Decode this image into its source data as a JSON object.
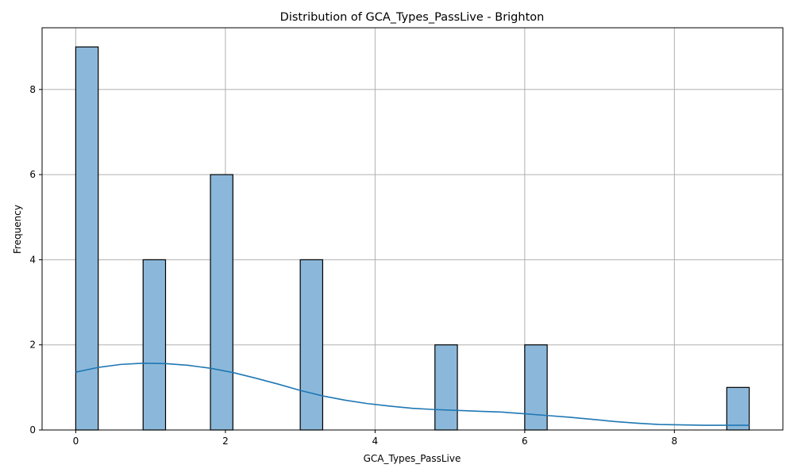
{
  "chart_data": {
    "type": "bar",
    "title": "Distribution of GCA_Types_PassLive - Brighton",
    "xlabel": "GCA_Types_PassLive",
    "ylabel": "Frequency",
    "xlim": [
      -0.45,
      9.45
    ],
    "ylim": [
      0,
      9.45
    ],
    "xticks": [
      0,
      2,
      4,
      6,
      8
    ],
    "yticks": [
      0,
      2,
      4,
      6,
      8
    ],
    "grid": true,
    "bin_width": 0.3,
    "bars": [
      {
        "x_start": 0.0,
        "value": 9
      },
      {
        "x_start": 0.9,
        "value": 4
      },
      {
        "x_start": 1.8,
        "value": 6
      },
      {
        "x_start": 3.0,
        "value": 4
      },
      {
        "x_start": 4.8,
        "value": 2
      },
      {
        "x_start": 6.0,
        "value": 2
      },
      {
        "x_start": 8.7,
        "value": 1
      }
    ],
    "kde": {
      "color": "#1f77b4",
      "x": [
        0.0,
        0.3,
        0.6,
        0.9,
        1.2,
        1.5,
        1.8,
        2.1,
        2.4,
        2.7,
        3.0,
        3.3,
        3.6,
        3.9,
        4.2,
        4.5,
        4.8,
        5.1,
        5.4,
        5.7,
        6.0,
        6.3,
        6.6,
        6.9,
        7.2,
        7.5,
        7.8,
        8.1,
        8.4,
        8.7,
        9.0
      ],
      "y": [
        1.36,
        1.47,
        1.54,
        1.57,
        1.56,
        1.52,
        1.45,
        1.35,
        1.22,
        1.08,
        0.93,
        0.8,
        0.7,
        0.62,
        0.56,
        0.51,
        0.48,
        0.46,
        0.44,
        0.42,
        0.38,
        0.34,
        0.3,
        0.25,
        0.2,
        0.16,
        0.13,
        0.12,
        0.11,
        0.11,
        0.11
      ]
    },
    "colors": {
      "bar_fill": "#8bb8da",
      "bar_edge": "#000000",
      "kde_line": "#1f77b4",
      "grid": "#b0b0b0"
    }
  }
}
